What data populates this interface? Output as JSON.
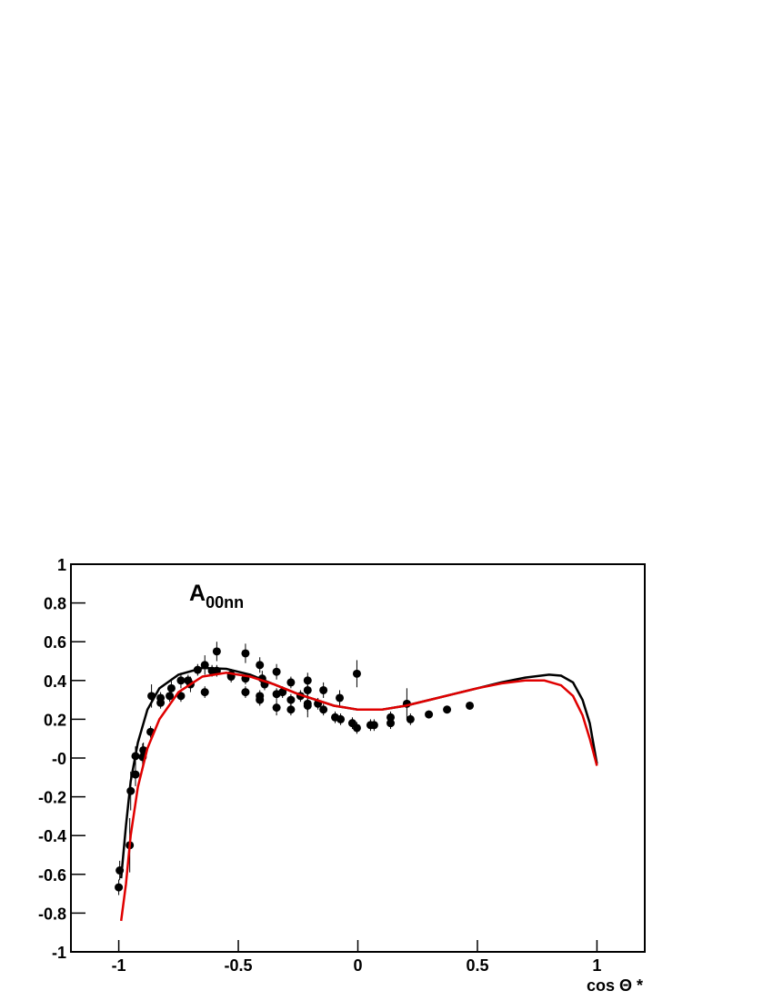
{
  "chart_data": {
    "type": "scatter",
    "annotation": {
      "text": "A",
      "subscript": "00nn"
    },
    "x_label": "cos Θ *",
    "xlim": [
      -1.2,
      1.2
    ],
    "xticks": [
      -1,
      -0.5,
      0,
      0.5,
      1
    ],
    "ylim": [
      -1,
      1
    ],
    "yticks": [
      -1,
      -0.8,
      -0.6,
      -0.4,
      -0.2,
      {
        "value": 0,
        "label": "-0"
      },
      0.2,
      0.4,
      0.6,
      0.8,
      1
    ],
    "series": [
      {
        "kind": "points",
        "color": "#000000",
        "x": [
          -1.0,
          -0.996,
          -0.954,
          -0.95,
          -0.93,
          -0.93,
          -0.9,
          -0.897,
          -0.867,
          -0.863,
          -0.825,
          -0.825,
          -0.787,
          -0.78,
          -0.74,
          -0.74,
          -0.71,
          -0.7,
          -0.67,
          -0.64,
          -0.64,
          -0.61,
          -0.59,
          -0.59,
          -0.53,
          -0.53,
          -0.47,
          -0.47,
          -0.47,
          -0.41,
          -0.41,
          -0.41,
          -0.4,
          -0.39,
          -0.34,
          -0.34,
          -0.34,
          -0.315,
          -0.28,
          -0.28,
          -0.28,
          -0.24,
          -0.21,
          -0.21,
          -0.21,
          -0.21,
          -0.167,
          -0.144,
          -0.144,
          -0.095,
          -0.076,
          -0.072,
          -0.023,
          -0.004,
          -0.004,
          0.053,
          0.068,
          0.137,
          0.137,
          0.205,
          0.22,
          0.297,
          0.373,
          0.468
        ],
        "values": [
          -0.667,
          -0.58,
          -0.45,
          -0.17,
          -0.085,
          0.01,
          0.005,
          0.04,
          0.135,
          0.32,
          0.285,
          0.31,
          0.32,
          0.36,
          0.32,
          0.4,
          0.4,
          0.38,
          0.455,
          0.48,
          0.34,
          0.45,
          0.55,
          0.45,
          0.43,
          0.42,
          0.54,
          0.34,
          0.41,
          0.48,
          0.3,
          0.32,
          0.41,
          0.38,
          0.445,
          0.26,
          0.33,
          0.34,
          0.39,
          0.3,
          0.25,
          0.32,
          0.4,
          0.35,
          0.28,
          0.27,
          0.28,
          0.35,
          0.25,
          0.21,
          0.31,
          0.2,
          0.18,
          0.155,
          0.435,
          0.17,
          0.17,
          0.21,
          0.18,
          0.28,
          0.2,
          0.225,
          0.25,
          0.27
        ],
        "errors": [
          0.04,
          0.05,
          0.14,
          0.1,
          0.06,
          0.05,
          0.07,
          0.04,
          0.03,
          0.06,
          0.03,
          0.03,
          0.03,
          0.04,
          0.03,
          0.04,
          0.03,
          0.04,
          0.03,
          0.05,
          0.03,
          0.03,
          0.05,
          0.03,
          0.03,
          0.03,
          0.05,
          0.03,
          0.03,
          0.04,
          0.03,
          0.03,
          0.04,
          0.03,
          0.04,
          0.04,
          0.03,
          0.03,
          0.03,
          0.03,
          0.03,
          0.03,
          0.04,
          0.03,
          0.04,
          0.06,
          0.03,
          0.04,
          0.03,
          0.03,
          0.04,
          0.03,
          0.03,
          0.03,
          0.07,
          0.03,
          0.03,
          0.03,
          0.03,
          0.08,
          0.03,
          0.02,
          0.02,
          0.02
        ]
      },
      {
        "kind": "line",
        "color": "#000000",
        "x": [
          -0.99,
          -0.97,
          -0.95,
          -0.92,
          -0.88,
          -0.83,
          -0.75,
          -0.65,
          -0.55,
          -0.45,
          -0.35,
          -0.25,
          -0.1,
          0,
          0.1,
          0.2,
          0.3,
          0.4,
          0.5,
          0.6,
          0.7,
          0.8,
          0.85,
          0.9,
          0.94,
          0.97,
          1.0
        ],
        "values": [
          -0.62,
          -0.35,
          -0.12,
          0.08,
          0.25,
          0.36,
          0.43,
          0.465,
          0.46,
          0.43,
          0.38,
          0.33,
          0.27,
          0.25,
          0.25,
          0.27,
          0.3,
          0.33,
          0.36,
          0.39,
          0.415,
          0.43,
          0.425,
          0.39,
          0.3,
          0.18,
          -0.03
        ]
      },
      {
        "kind": "line",
        "color": "#e00000",
        "x": [
          -0.99,
          -0.97,
          -0.95,
          -0.92,
          -0.88,
          -0.83,
          -0.75,
          -0.65,
          -0.55,
          -0.45,
          -0.35,
          -0.25,
          -0.1,
          0,
          0.1,
          0.2,
          0.3,
          0.4,
          0.5,
          0.6,
          0.7,
          0.78,
          0.85,
          0.9,
          0.94,
          0.97,
          1.0
        ],
        "values": [
          -0.84,
          -0.65,
          -0.4,
          -0.15,
          0.05,
          0.2,
          0.34,
          0.42,
          0.44,
          0.42,
          0.38,
          0.33,
          0.27,
          0.25,
          0.25,
          0.27,
          0.3,
          0.33,
          0.36,
          0.385,
          0.4,
          0.4,
          0.375,
          0.32,
          0.22,
          0.1,
          -0.04
        ]
      }
    ]
  }
}
